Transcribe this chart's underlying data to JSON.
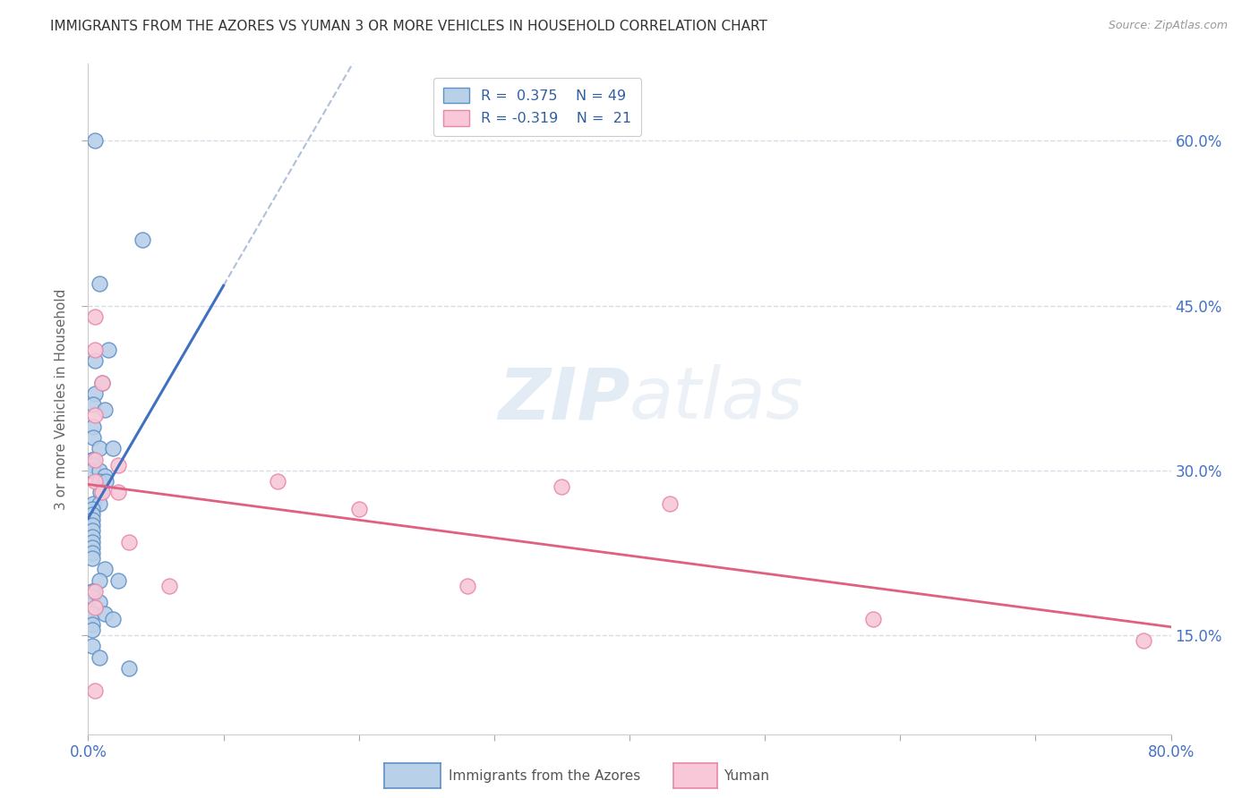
{
  "title": "IMMIGRANTS FROM THE AZORES VS YUMAN 3 OR MORE VEHICLES IN HOUSEHOLD CORRELATION CHART",
  "source": "Source: ZipAtlas.com",
  "ylabel": "3 or more Vehicles in Household",
  "xlim": [
    0.0,
    0.8
  ],
  "ylim": [
    0.06,
    0.67
  ],
  "yticks": [
    0.15,
    0.3,
    0.45,
    0.6
  ],
  "yticklabels": [
    "15.0%",
    "30.0%",
    "45.0%",
    "60.0%"
  ],
  "xtick_positions": [
    0.0,
    0.1,
    0.2,
    0.3,
    0.4,
    0.5,
    0.6,
    0.7,
    0.8
  ],
  "blue_R": 0.375,
  "blue_N": 49,
  "pink_R": -0.319,
  "pink_N": 21,
  "blue_fill": "#b8d0e8",
  "pink_fill": "#f8c8d8",
  "blue_edge": "#6090c8",
  "pink_edge": "#e888a8",
  "blue_line": "#4070c0",
  "pink_line": "#e06080",
  "diag_line": "#b0c0d8",
  "bg": "#ffffff",
  "grid_color": "#d8dce8",
  "watermark_color": "#d8e4f0",
  "blue_x": [
    0.005,
    0.04,
    0.008,
    0.015,
    0.005,
    0.01,
    0.005,
    0.004,
    0.012,
    0.004,
    0.004,
    0.008,
    0.018,
    0.003,
    0.003,
    0.004,
    0.003,
    0.008,
    0.012,
    0.008,
    0.013,
    0.009,
    0.004,
    0.008,
    0.003,
    0.003,
    0.003,
    0.003,
    0.003,
    0.003,
    0.003,
    0.003,
    0.003,
    0.003,
    0.012,
    0.022,
    0.008,
    0.003,
    0.003,
    0.003,
    0.008,
    0.003,
    0.012,
    0.018,
    0.003,
    0.003,
    0.003,
    0.008,
    0.03
  ],
  "blue_y": [
    0.6,
    0.51,
    0.47,
    0.41,
    0.4,
    0.38,
    0.37,
    0.36,
    0.355,
    0.34,
    0.33,
    0.32,
    0.32,
    0.31,
    0.31,
    0.305,
    0.3,
    0.3,
    0.295,
    0.29,
    0.29,
    0.28,
    0.27,
    0.27,
    0.265,
    0.26,
    0.255,
    0.25,
    0.245,
    0.24,
    0.235,
    0.23,
    0.225,
    0.22,
    0.21,
    0.2,
    0.2,
    0.19,
    0.19,
    0.185,
    0.18,
    0.17,
    0.17,
    0.165,
    0.16,
    0.155,
    0.14,
    0.13,
    0.12
  ],
  "pink_x": [
    0.005,
    0.005,
    0.01,
    0.005,
    0.005,
    0.022,
    0.005,
    0.01,
    0.022,
    0.005,
    0.14,
    0.2,
    0.28,
    0.005,
    0.35,
    0.005,
    0.43,
    0.58,
    0.78,
    0.03,
    0.06
  ],
  "pink_y": [
    0.44,
    0.41,
    0.38,
    0.35,
    0.31,
    0.305,
    0.29,
    0.28,
    0.28,
    0.19,
    0.29,
    0.265,
    0.195,
    0.175,
    0.285,
    0.1,
    0.27,
    0.165,
    0.145,
    0.235,
    0.195
  ]
}
